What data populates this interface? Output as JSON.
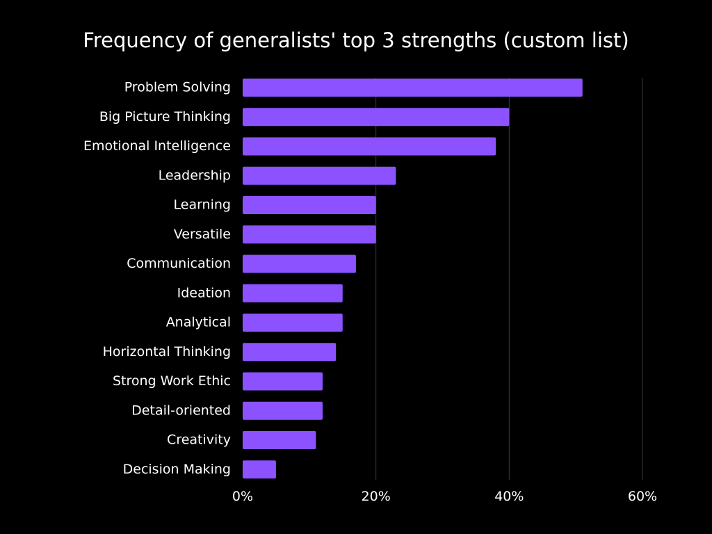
{
  "chart_data": {
    "type": "bar",
    "orientation": "horizontal",
    "title": "Frequency of generalists' top 3 strengths (custom list)",
    "xlabel": "",
    "ylabel": "",
    "categories": [
      "Problem Solving",
      "Big Picture Thinking",
      "Emotional Intelligence",
      "Leadership",
      "Learning",
      "Versatile",
      "Communication",
      "Ideation",
      "Analytical",
      "Horizontal Thinking",
      "Strong Work Ethic",
      "Detail-oriented",
      "Creativity",
      "Decision Making"
    ],
    "values": [
      51,
      40,
      38,
      23,
      20,
      20,
      17,
      15,
      15,
      14,
      12,
      12,
      11,
      5
    ],
    "value_unit": "%",
    "xlim": [
      0,
      60
    ],
    "xticks": [
      0,
      20,
      40,
      60
    ],
    "xtick_labels": [
      "0%",
      "20%",
      "40%",
      "60%"
    ],
    "grid": true,
    "legend": "none"
  },
  "colors": {
    "background": "#000000",
    "bar": "#8c52ff",
    "text": "#ffffff",
    "grid": "#3a3a3a"
  }
}
